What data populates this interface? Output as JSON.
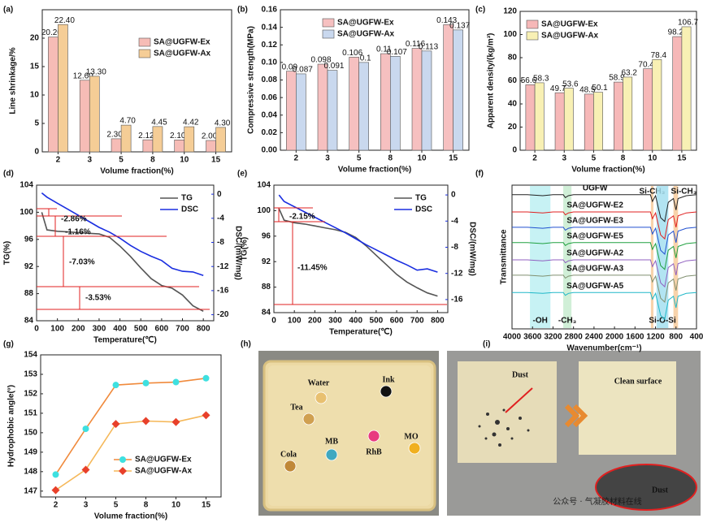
{
  "chart_data": [
    {
      "type": "bar",
      "panel_label": "(a)",
      "xlabel": "Volume fraction(%)",
      "ylabel": "Line shrinkage/%",
      "legend": "upper right",
      "categories": [
        "2",
        "3",
        "5",
        "8",
        "10",
        "15"
      ],
      "ylim": [
        0,
        25
      ],
      "yticks": [
        0,
        5,
        10,
        15,
        20
      ],
      "series": [
        {
          "name": "SA@UGFW-Ex",
          "color": "#f6bcb6",
          "values": [
            20.2,
            12.6,
            2.3,
            2.12,
            2.1,
            2.0
          ],
          "value_labels": [
            "20.20",
            "12.60",
            "2.30",
            "2.12",
            "2.10",
            "2.00"
          ]
        },
        {
          "name": "SA@UGFW-Ax",
          "color": "#f5cd96",
          "values": [
            22.4,
            13.3,
            4.7,
            4.45,
            4.42,
            4.3
          ],
          "value_labels": [
            "22.40",
            "13.30",
            "4.70",
            "4.45",
            "4.42",
            "4.30"
          ]
        }
      ]
    },
    {
      "type": "bar",
      "panel_label": "(b)",
      "xlabel": "Volume fraction(%)",
      "ylabel": "Compressive strength(MPa)",
      "legend": "upper center",
      "categories": [
        "2",
        "3",
        "5",
        "8",
        "10",
        "15"
      ],
      "ylim": [
        0,
        0.16
      ],
      "yticks": [
        {
          "value": 0,
          "label": "0.00"
        },
        0.02,
        0.04,
        0.06,
        0.08,
        {
          "value": 0.1,
          "label": "0.10"
        },
        0.12,
        0.14,
        0.16
      ],
      "series": [
        {
          "name": "SA@UGFW-Ex",
          "color": "#f6c0c0",
          "values": [
            0.09,
            0.098,
            0.106,
            0.11,
            0.116,
            0.143
          ]
        },
        {
          "name": "SA@UGFW-Ax",
          "color": "#c9d8ee",
          "values": [
            0.087,
            0.091,
            0.1,
            0.107,
            0.113,
            0.137
          ]
        }
      ]
    },
    {
      "type": "bar",
      "panel_label": "(c)",
      "xlabel": "Volume fraction(%)",
      "ylabel": "Apparent density/(kg/m³)",
      "legend": "upper left",
      "categories": [
        "2",
        "3",
        "5",
        "8",
        "10",
        "15"
      ],
      "ylim": [
        0,
        120
      ],
      "yticks": [
        0,
        20,
        40,
        60,
        80,
        100,
        120
      ],
      "series": [
        {
          "name": "SA@UGFW-Ex",
          "color": "#f6b8b8",
          "values": [
            56.6,
            49.7,
            48.5,
            58.9,
            70.4,
            98.2
          ]
        },
        {
          "name": "SA@UGFW-Ax",
          "color": "#f8f0b4",
          "values": [
            58.3,
            53.6,
            50.1,
            63.2,
            78.4,
            106.7
          ]
        }
      ]
    },
    {
      "type": "line",
      "panel_label": "(d)",
      "xlabel": "Temperature(℃)",
      "ylabel": "TG(%)",
      "y2label": "DSC/(mW/mg)",
      "legend": "upper right",
      "x": [
        25,
        50,
        100,
        150,
        200,
        250,
        300,
        350,
        400,
        450,
        500,
        550,
        600,
        650,
        700,
        750,
        800
      ],
      "xlim": [
        0,
        850
      ],
      "xticks": [
        0,
        100,
        200,
        300,
        400,
        500,
        600,
        700,
        800
      ],
      "ylim": [
        84,
        104
      ],
      "yticks": [
        84,
        88,
        92,
        96,
        100,
        104
      ],
      "y2lim": [
        -21,
        1.5
      ],
      "y2ticks": [
        0,
        -4,
        -8,
        -12,
        -16,
        -20
      ],
      "annotations": [
        "-2.86%",
        "-1.16%",
        "-7.03%",
        "-3.53%"
      ],
      "series": [
        {
          "name": "TG",
          "color": "#555555",
          "values": [
            100,
            97.4,
            97.2,
            97.1,
            97,
            96.9,
            96.8,
            96.3,
            95,
            93.5,
            91.8,
            90.2,
            89.2,
            88.8,
            87.8,
            86.2,
            85.4
          ]
        },
        {
          "name": "DSC",
          "color": "#1a2ee0",
          "axis": "y2",
          "values": [
            0.2,
            -0.5,
            -1.5,
            -2.5,
            -3.5,
            -4.5,
            -5.5,
            -6.3,
            -7.3,
            -8.5,
            -9.5,
            -10.3,
            -11,
            -12.3,
            -12.8,
            -12.9,
            -13.5
          ]
        }
      ]
    },
    {
      "type": "line",
      "panel_label": "(e)",
      "xlabel": "Temperature(℃)",
      "ylabel": "TG(%)",
      "y2label": "DSC/(mW/mg)",
      "legend": "upper right",
      "x": [
        25,
        50,
        100,
        150,
        200,
        250,
        300,
        350,
        400,
        450,
        500,
        550,
        600,
        650,
        700,
        750,
        800
      ],
      "xlim": [
        0,
        850
      ],
      "xticks": [
        0,
        100,
        200,
        300,
        400,
        500,
        600,
        700,
        800
      ],
      "ylim": [
        84,
        104
      ],
      "yticks": [
        84,
        88,
        92,
        96,
        100,
        104
      ],
      "y2lim": [
        -18,
        1.5
      ],
      "y2ticks": [
        0,
        -4,
        -8,
        -12,
        -16
      ],
      "annotations": [
        "-2.15%",
        "-11.45%"
      ],
      "series": [
        {
          "name": "TG",
          "color": "#555555",
          "values": [
            100.3,
            98.5,
            98.1,
            97.9,
            97.6,
            97.3,
            97,
            96.6,
            95.8,
            94.5,
            93,
            91.5,
            90,
            88.8,
            87.9,
            87.1,
            86.6
          ]
        },
        {
          "name": "DSC",
          "color": "#1a2ee0",
          "axis": "y2",
          "values": [
            0,
            -1,
            -1.8,
            -2.6,
            -3.4,
            -4.2,
            -5,
            -5.8,
            -6.7,
            -7.6,
            -8.4,
            -9.2,
            -10,
            -10.7,
            -11.5,
            -11.3,
            -11.8
          ]
        }
      ]
    },
    {
      "type": "spectra",
      "panel_label": "(f)",
      "xlabel": "Wavenumber(cm⁻¹)",
      "ylabel": "Transmittance",
      "x": [
        4000,
        3700,
        3400,
        3200,
        3000,
        2960,
        2900,
        2800,
        2400,
        2000,
        1600,
        1300,
        1260,
        1200,
        1100,
        1020,
        950,
        850,
        800,
        760,
        600,
        400
      ],
      "xlim": [
        4000,
        400
      ],
      "xticks": [
        4000,
        3600,
        3200,
        2800,
        2400,
        2000,
        1600,
        1200,
        800,
        400
      ],
      "ylim": [
        0,
        7.5
      ],
      "bands": [
        {
          "label": "-OH",
          "range": [
            3650,
            3250
          ],
          "color": "#bdf0f2",
          "text_color": "#40c8d8"
        },
        {
          "label": "-CH₃",
          "range": [
            3000,
            2840
          ],
          "color": "#c8ecd0",
          "text_color": "#50b070"
        },
        {
          "label": "Si-CH₃",
          "range": [
            1290,
            1240
          ],
          "color": "#f7cb9c",
          "text_color": "#f08a30"
        },
        {
          "label": "Si-CH₃",
          "range": [
            850,
            760
          ],
          "color": "#f7cb9c",
          "text_color": "#f08a30"
        },
        {
          "label": "Si-O-Si",
          "range": [
            1180,
            950
          ],
          "color": "#a4dff0",
          "text_color": "#2a80c8"
        }
      ],
      "series": [
        {
          "name": "UGFW",
          "color": "#222222",
          "values": [
            7,
            7,
            6.95,
            7,
            7,
            6.85,
            6.95,
            7,
            7,
            7,
            7,
            7,
            6.65,
            6.95,
            5.8,
            5.6,
            6.6,
            6.8,
            6.2,
            6.8,
            6.95,
            7
          ]
        },
        {
          "name": "SA@UGFW-E2",
          "color": "#e02020",
          "values": [
            6.1,
            6.1,
            6.05,
            6.1,
            6.1,
            5.95,
            6.05,
            6.1,
            6.1,
            6.1,
            6.1,
            6.1,
            5.75,
            6.05,
            4.9,
            4.7,
            5.7,
            5.9,
            5.3,
            5.9,
            6.05,
            6.1
          ]
        },
        {
          "name": "SA@UGFW-E3",
          "color": "#2050d0",
          "values": [
            5.3,
            5.3,
            5.25,
            5.3,
            5.3,
            5.15,
            5.25,
            5.3,
            5.3,
            5.3,
            5.3,
            5.3,
            4.95,
            5.25,
            4.1,
            3.9,
            4.9,
            5.1,
            4.5,
            5.1,
            5.25,
            5.3
          ]
        },
        {
          "name": "SA@UGFW-E5",
          "color": "#20a040",
          "values": [
            4.5,
            4.5,
            4.45,
            4.5,
            4.5,
            4.35,
            4.45,
            4.5,
            4.5,
            4.5,
            4.5,
            4.5,
            4.15,
            4.45,
            3.3,
            3.1,
            4.1,
            4.3,
            3.7,
            4.3,
            4.45,
            4.5
          ]
        },
        {
          "name": "SA@UGFW-A2",
          "color": "#9060c0",
          "values": [
            3.6,
            3.6,
            3.55,
            3.6,
            3.6,
            3.45,
            3.55,
            3.6,
            3.6,
            3.6,
            3.6,
            3.6,
            3.25,
            3.55,
            2.4,
            2.2,
            3.2,
            3.4,
            2.8,
            3.4,
            3.55,
            3.6
          ]
        },
        {
          "name": "SA@UGFW-A3",
          "color": "#809070",
          "values": [
            2.8,
            2.8,
            2.75,
            2.8,
            2.8,
            2.65,
            2.75,
            2.8,
            2.8,
            2.8,
            2.8,
            2.8,
            2.45,
            2.75,
            1.6,
            1.4,
            2.4,
            2.6,
            2,
            2.6,
            2.75,
            2.8
          ]
        },
        {
          "name": "SA@UGFW-A5",
          "color": "#20b8c8",
          "values": [
            1.9,
            1.9,
            1.85,
            1.9,
            1.9,
            1.75,
            1.85,
            1.9,
            1.9,
            1.9,
            1.9,
            1.9,
            1.55,
            1.85,
            0.7,
            0.5,
            1.5,
            1.7,
            1.1,
            1.7,
            1.85,
            1.9
          ]
        }
      ]
    },
    {
      "type": "line",
      "panel_label": "(g)",
      "xlabel": "Volume fraction(%)",
      "ylabel": "Hydrophobic angle(°)",
      "legend": "lower right",
      "categories": [
        "2",
        "3",
        "5",
        "8",
        "10",
        "15"
      ],
      "ylim": [
        146.7,
        154
      ],
      "yticks": [
        147,
        148,
        149,
        150,
        151,
        152,
        153,
        154
      ],
      "series": [
        {
          "name": "SA@UGFW-Ex",
          "color": "#f08a3c",
          "marker": "circle",
          "marker_color": "#3ee0e0",
          "values": [
            147.85,
            150.2,
            152.45,
            152.55,
            152.6,
            152.8
          ]
        },
        {
          "name": "SA@UGFW-Ax",
          "color": "#f5b85a",
          "marker": "diamond",
          "marker_color": "#e8402a",
          "values": [
            147.05,
            148.1,
            150.45,
            150.6,
            150.55,
            150.9
          ]
        }
      ]
    }
  ],
  "photos": [
    {
      "panel_label": "(h)",
      "drops": [
        {
          "label": "Water",
          "color": "#e8c070"
        },
        {
          "label": "Ink",
          "color": "#111111"
        },
        {
          "label": "Tea",
          "color": "#d0a050"
        },
        {
          "label": "MB",
          "color": "#40a8c0"
        },
        {
          "label": "RhB",
          "color": "#e83a80"
        },
        {
          "label": "MO",
          "color": "#f0b020"
        },
        {
          "label": "Cola",
          "color": "#c08838"
        }
      ]
    },
    {
      "panel_label": "(i)",
      "labels": [
        "Dust",
        "Clean surface",
        "Dust"
      ],
      "watermark": "公众号 · 气凝胶材料在线"
    }
  ]
}
